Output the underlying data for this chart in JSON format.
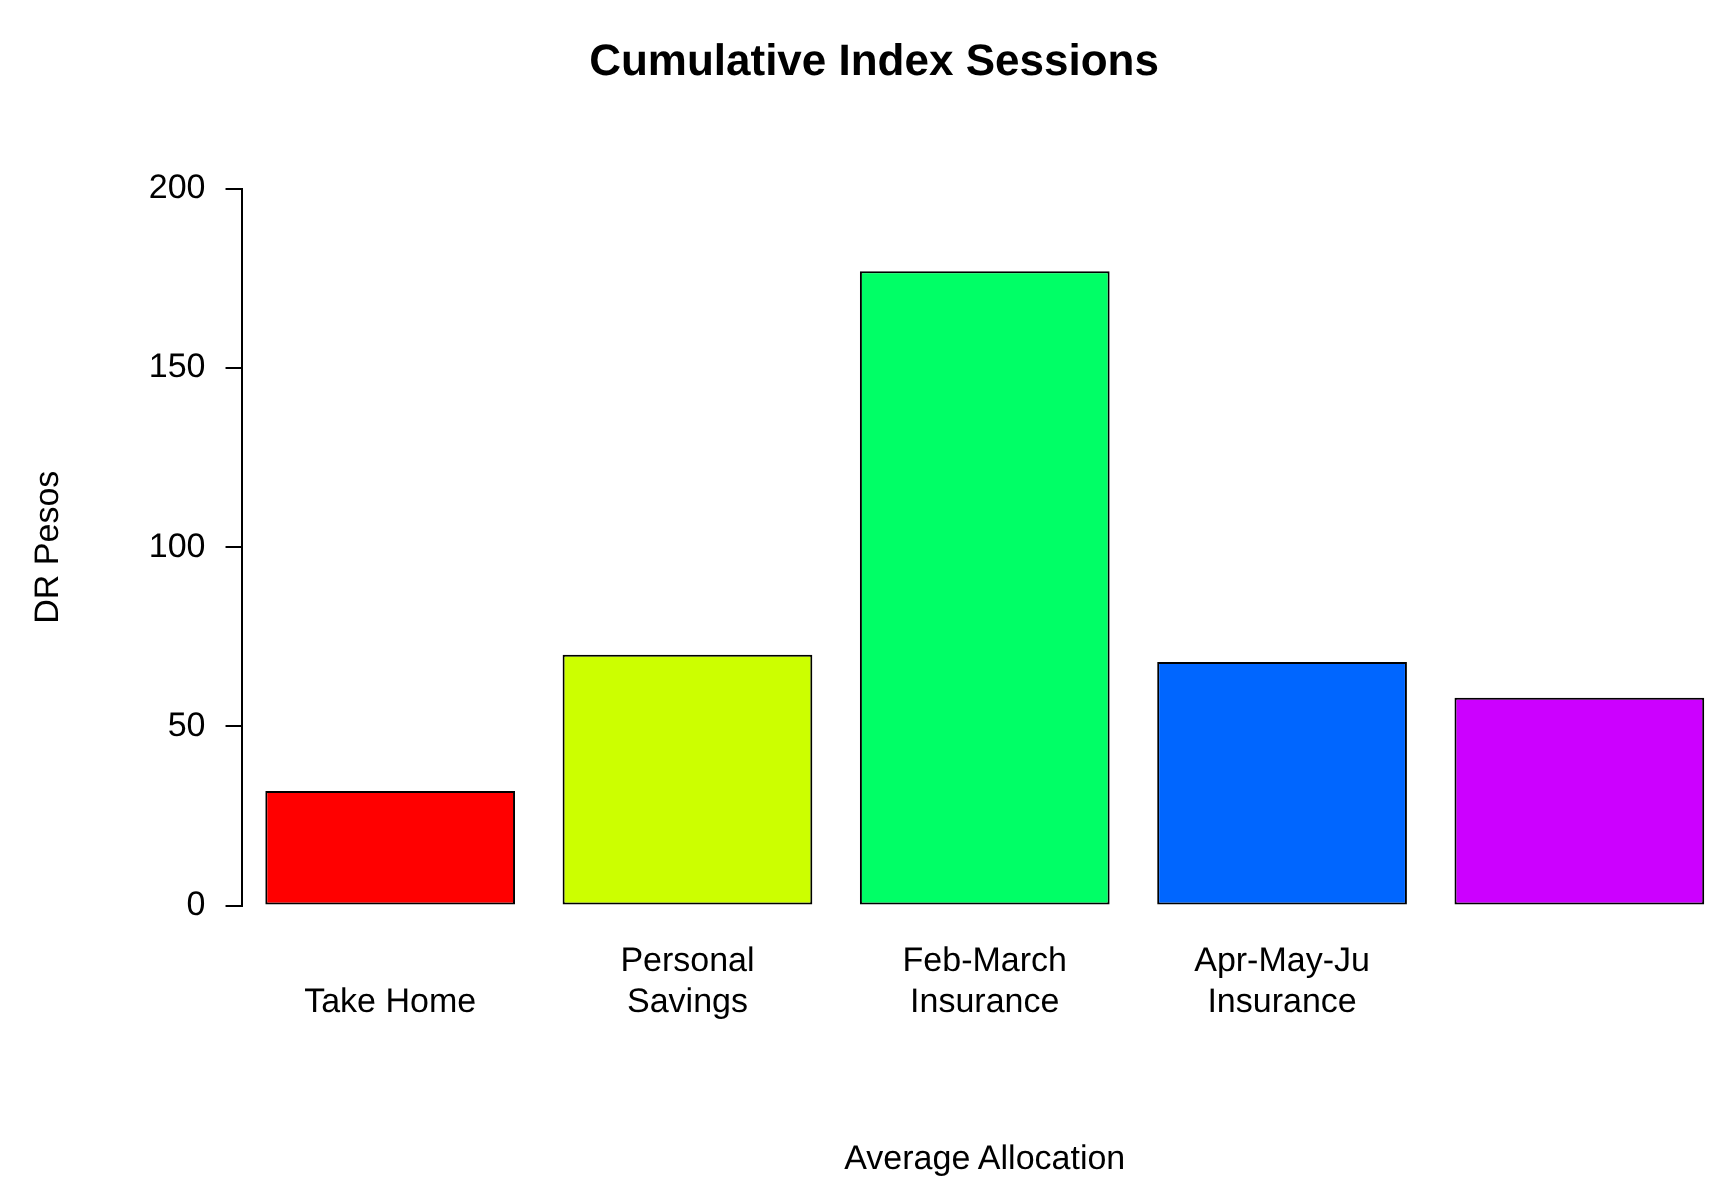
{
  "chart_data": {
    "type": "bar",
    "title": "Cumulative Index Sessions",
    "xlabel": "Average Allocation",
    "ylabel": "DR Pesos",
    "categories": [
      "Take Home",
      "Personal\nSavings",
      "Feb-March\nInsurance",
      "Apr-May-Ju\nInsurance",
      null
    ],
    "values": [
      32,
      70,
      177,
      68,
      58
    ],
    "colors": [
      "#ff0000",
      "#ccff00",
      "#00ff66",
      "#0066ff",
      "#cc00ff"
    ],
    "ylim": [
      0,
      200
    ],
    "yticks": [
      0,
      50,
      100,
      150,
      200
    ],
    "grid": false,
    "legend": false
  }
}
